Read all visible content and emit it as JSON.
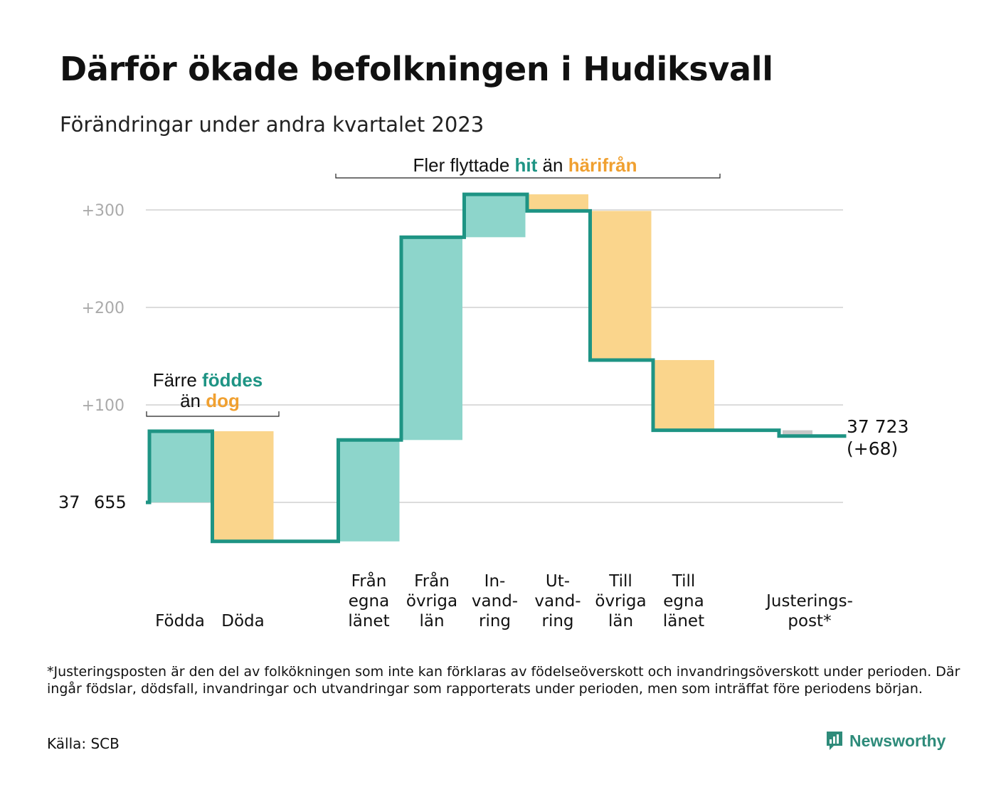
{
  "title": "Därför ökade befolkningen i Hudiksvall",
  "subtitle": "Förändringar under andra kvartalet 2023",
  "footnote": "*Justeringsposten är den del av folkökningen som inte kan förklaras av födelseöverskott och invandringsöverskott under perioden. Där ingår födslar, dödsfall, invandringar och utvandringar som rapporterats under perioden, men som inträffat före periodens början.",
  "source": "Källa: SCB",
  "brand": "Newsworthy",
  "colors": {
    "increase": "#8dd5cb",
    "decrease": "#fad58c",
    "adjust": "#c8c8c8",
    "line": "#1e9484",
    "grid": "#dcdcdc",
    "teal_text": "#1e9484",
    "orange_text": "#f0a030",
    "axis_text": "#aaaaaa"
  },
  "chart_data": {
    "type": "waterfall",
    "start_value": 37655,
    "start_label": "37 655",
    "end_label": "37 723",
    "end_change_label": "(+68)",
    "yticks": [
      100,
      200,
      300
    ],
    "ytick_labels": [
      "+100",
      "+200",
      "+300"
    ],
    "ylim": [
      -45,
      320
    ],
    "steps": [
      {
        "label": [
          "Födda"
        ],
        "delta": 73,
        "kind": "increase"
      },
      {
        "label": [
          "Döda"
        ],
        "delta": -113,
        "kind": "decrease"
      },
      {
        "label": [],
        "delta": 0,
        "kind": "gap"
      },
      {
        "label": [
          "Från",
          "egna",
          "länet"
        ],
        "delta": 104,
        "kind": "increase"
      },
      {
        "label": [
          "Från",
          "övriga",
          "län"
        ],
        "delta": 208,
        "kind": "increase"
      },
      {
        "label": [
          "In-",
          "vand-",
          "ring"
        ],
        "delta": 44,
        "kind": "increase"
      },
      {
        "label": [
          "Ut-",
          "vand-",
          "ring"
        ],
        "delta": -17,
        "kind": "decrease"
      },
      {
        "label": [
          "Till",
          "övriga",
          "län"
        ],
        "delta": -153,
        "kind": "decrease"
      },
      {
        "label": [
          "Till",
          "egna",
          "länet"
        ],
        "delta": -72,
        "kind": "decrease"
      },
      {
        "label": [],
        "delta": 0,
        "kind": "gap"
      },
      {
        "label": [
          "Justerings-",
          "post*"
        ],
        "delta": -6,
        "kind": "adjust"
      }
    ],
    "annotations": [
      {
        "lines": [
          [
            "Färre ",
            "födde",
            "s"
          ],
          [
            "än ",
            "dog"
          ]
        ],
        "parts": [
          [
            "Färre",
            "föddes"
          ],
          [
            "än",
            "dog"
          ]
        ]
      },
      {
        "parts": [
          "Fler flyttade",
          "hit",
          "än",
          "härifrån"
        ]
      }
    ]
  }
}
